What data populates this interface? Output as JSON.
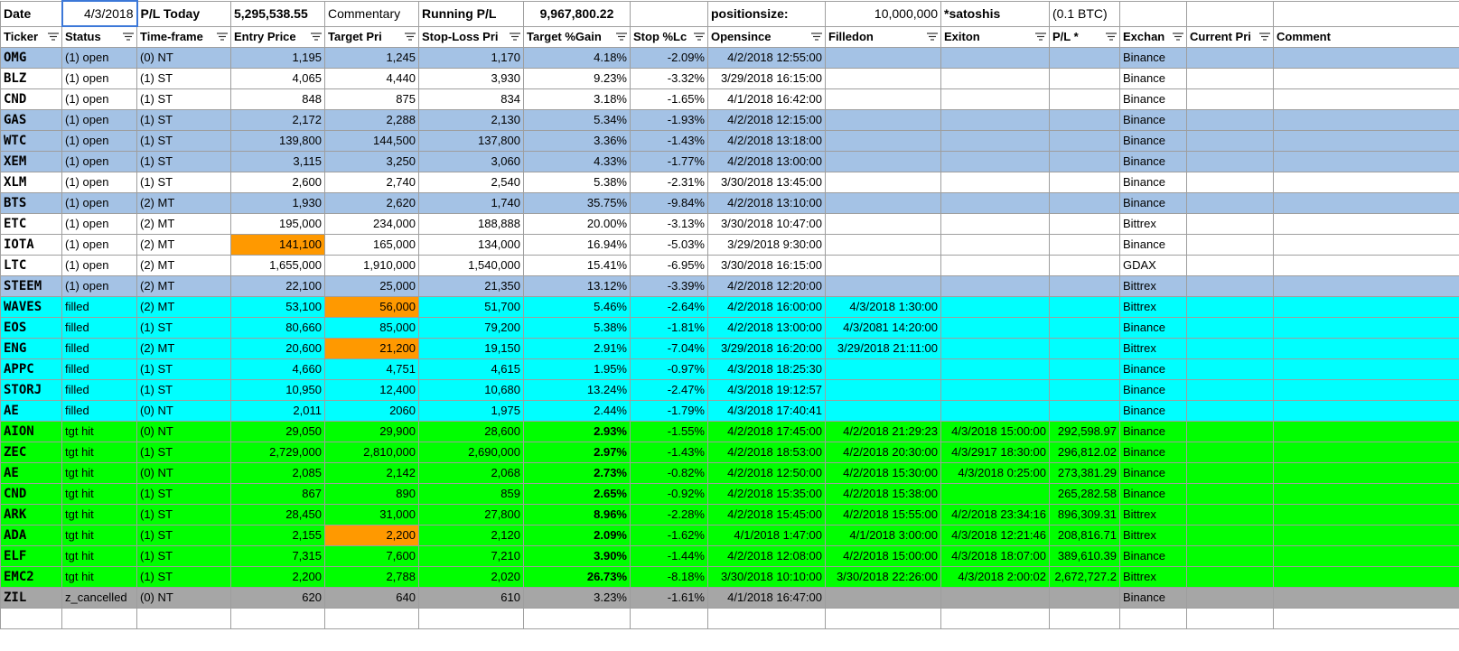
{
  "top": {
    "date_label": "Date",
    "date_value": "4/3/2018",
    "pl_today_label": "P/L Today",
    "pl_today_value": "5,295,538.55",
    "commentary_label": "Commentary",
    "running_pl_label": "Running P/L",
    "running_pl_value": "9,967,800.22",
    "positionsize_label": "positionsize:",
    "positionsize_value": "10,000,000",
    "satoshis_label": "*satoshis",
    "btc_label": "(0.1 BTC)"
  },
  "headers": [
    "Ticker",
    "Status",
    "Time-frame",
    "Entry Price",
    "Target Pri",
    "Stop-Loss Pri",
    "Target %Gain",
    "Stop %Lc",
    "Opensince",
    "Filledon",
    "Exiton",
    "P/L *",
    "Exchan",
    "Current Pri",
    "Comment"
  ],
  "rows": [
    {
      "style": "open-blue",
      "cells": [
        "OMG",
        "(1) open",
        "(0) NT",
        "1,195",
        "1,245",
        "1,170",
        "4.18%",
        "-2.09%",
        "4/2/2018 12:55:00",
        "",
        "",
        "",
        "Binance",
        "",
        ""
      ]
    },
    {
      "style": "open-white",
      "cells": [
        "BLZ",
        "(1) open",
        "(1) ST",
        "4,065",
        "4,440",
        "3,930",
        "9.23%",
        "-3.32%",
        "3/29/2018 16:15:00",
        "",
        "",
        "",
        "Binance",
        "",
        ""
      ]
    },
    {
      "style": "open-white",
      "cells": [
        "CND",
        "(1) open",
        "(1) ST",
        "848",
        "875",
        "834",
        "3.18%",
        "-1.65%",
        "4/1/2018 16:42:00",
        "",
        "",
        "",
        "Binance",
        "",
        ""
      ]
    },
    {
      "style": "open-blue",
      "cells": [
        "GAS",
        "(1) open",
        "(1) ST",
        "2,172",
        "2,288",
        "2,130",
        "5.34%",
        "-1.93%",
        "4/2/2018 12:15:00",
        "",
        "",
        "",
        "Binance",
        "",
        ""
      ]
    },
    {
      "style": "open-blue",
      "cells": [
        "WTC",
        "(1) open",
        "(1) ST",
        "139,800",
        "144,500",
        "137,800",
        "3.36%",
        "-1.43%",
        "4/2/2018 13:18:00",
        "",
        "",
        "",
        "Binance",
        "",
        ""
      ]
    },
    {
      "style": "open-blue",
      "cells": [
        "XEM",
        "(1) open",
        "(1) ST",
        "3,115",
        "3,250",
        "3,060",
        "4.33%",
        "-1.77%",
        "4/2/2018 13:00:00",
        "",
        "",
        "",
        "Binance",
        "",
        ""
      ]
    },
    {
      "style": "open-white",
      "cells": [
        "XLM",
        "(1) open",
        "(1) ST",
        "2,600",
        "2,740",
        "2,540",
        "5.38%",
        "-2.31%",
        "3/30/2018 13:45:00",
        "",
        "",
        "",
        "Binance",
        "",
        ""
      ]
    },
    {
      "style": "open-blue",
      "cells": [
        "BTS",
        "(1) open",
        "(2) MT",
        "1,930",
        "2,620",
        "1,740",
        "35.75%",
        "-9.84%",
        "4/2/2018 13:10:00",
        "",
        "",
        "",
        "Binance",
        "",
        ""
      ]
    },
    {
      "style": "open-white",
      "cells": [
        "ETC",
        "(1) open",
        "(2) MT",
        "195,000",
        "234,000",
        "188,888",
        "20.00%",
        "-3.13%",
        "3/30/2018 10:47:00",
        "",
        "",
        "",
        "Bittrex",
        "",
        ""
      ]
    },
    {
      "style": "open-white",
      "hl": [
        3
      ],
      "cells": [
        "IOTA",
        "(1) open",
        "(2) MT",
        "141,100",
        "165,000",
        "134,000",
        "16.94%",
        "-5.03%",
        "3/29/2018 9:30:00",
        "",
        "",
        "",
        "Binance",
        "",
        ""
      ]
    },
    {
      "style": "open-white",
      "cells": [
        "LTC",
        "(1) open",
        "(2) MT",
        "1,655,000",
        "1,910,000",
        "1,540,000",
        "15.41%",
        "-6.95%",
        "3/30/2018 16:15:00",
        "",
        "",
        "",
        "GDAX",
        "",
        ""
      ]
    },
    {
      "style": "open-blue",
      "cells": [
        "STEEM",
        "(1) open",
        "(2) MT",
        "22,100",
        "25,000",
        "21,350",
        "13.12%",
        "-3.39%",
        "4/2/2018 12:20:00",
        "",
        "",
        "",
        "Bittrex",
        "",
        ""
      ]
    },
    {
      "style": "filled",
      "hl": [
        4
      ],
      "cells": [
        "WAVES",
        "filled",
        "(2) MT",
        "53,100",
        "56,000",
        "51,700",
        "5.46%",
        "-2.64%",
        "4/2/2018 16:00:00",
        "4/3/2018 1:30:00",
        "",
        "",
        "Bittrex",
        "",
        ""
      ]
    },
    {
      "style": "filled",
      "cells": [
        "EOS",
        "filled",
        "(1) ST",
        "80,660",
        "85,000",
        "79,200",
        "5.38%",
        "-1.81%",
        "4/2/2018 13:00:00",
        "4/3/2081 14:20:00",
        "",
        "",
        "Binance",
        "",
        ""
      ]
    },
    {
      "style": "filled",
      "hl": [
        4
      ],
      "cells": [
        "ENG",
        "filled",
        "(2) MT",
        "20,600",
        "21,200",
        "19,150",
        "2.91%",
        "-7.04%",
        "3/29/2018 16:20:00",
        "3/29/2018 21:11:00",
        "",
        "",
        "Bittrex",
        "",
        ""
      ]
    },
    {
      "style": "filled",
      "cells": [
        "APPC",
        "filled",
        "(1) ST",
        "4,660",
        "4,751",
        "4,615",
        "1.95%",
        "-0.97%",
        "4/3/2018 18:25:30",
        "",
        "",
        "",
        "Binance",
        "",
        ""
      ]
    },
    {
      "style": "filled",
      "cells": [
        "STORJ",
        "filled",
        "(1) ST",
        "10,950",
        "12,400",
        "10,680",
        "13.24%",
        "-2.47%",
        "4/3/2018 19:12:57",
        "",
        "",
        "",
        "Binance",
        "",
        ""
      ]
    },
    {
      "style": "filled",
      "cells": [
        "AE",
        "filled",
        "(0) NT",
        "2,011",
        "2060",
        "1,975",
        "2.44%",
        "-1.79%",
        "4/3/2018 17:40:41",
        "",
        "",
        "",
        "Binance",
        "",
        ""
      ]
    },
    {
      "style": "tgt",
      "cells": [
        "AION",
        "tgt hit",
        "(0) NT",
        "29,050",
        "29,900",
        "28,600",
        "2.93%",
        "-1.55%",
        "4/2/2018 17:45:00",
        "4/2/2018 21:29:23",
        "4/3/2018 15:00:00",
        "292,598.97",
        "Binance",
        "",
        ""
      ]
    },
    {
      "style": "tgt",
      "cells": [
        "ZEC",
        "tgt hit",
        "(1) ST",
        "2,729,000",
        "2,810,000",
        "2,690,000",
        "2.97%",
        "-1.43%",
        "4/2/2018 18:53:00",
        "4/2/2018 20:30:00",
        "4/3/2917 18:30:00",
        "296,812.02",
        "Binance",
        "",
        ""
      ]
    },
    {
      "style": "tgt",
      "cells": [
        "AE",
        "tgt hit",
        "(0) NT",
        "2,085",
        "2,142",
        "2,068",
        "2.73%",
        "-0.82%",
        "4/2/2018 12:50:00",
        "4/2/2018 15:30:00",
        "4/3/2018 0:25:00",
        "273,381.29",
        "Binance",
        "",
        ""
      ]
    },
    {
      "style": "tgt",
      "cells": [
        "CND",
        "tgt hit",
        "(1) ST",
        "867",
        "890",
        "859",
        "2.65%",
        "-0.92%",
        "4/2/2018 15:35:00",
        "4/2/2018 15:38:00",
        "",
        "265,282.58",
        "Binance",
        "",
        ""
      ]
    },
    {
      "style": "tgt",
      "cells": [
        "ARK",
        "tgt hit",
        "(1) ST",
        "28,450",
        "31,000",
        "27,800",
        "8.96%",
        "-2.28%",
        "4/2/2018 15:45:00",
        "4/2/2018 15:55:00",
        "4/2/2018 23:34:16",
        "896,309.31",
        "Bittrex",
        "",
        ""
      ]
    },
    {
      "style": "tgt",
      "hl": [
        4
      ],
      "cells": [
        "ADA",
        "tgt hit",
        "(1) ST",
        "2,155",
        "2,200",
        "2,120",
        "2.09%",
        "-1.62%",
        "4/1/2018 1:47:00",
        "4/1/2018 3:00:00",
        "4/3/2018 12:21:46",
        "208,816.71",
        "Bittrex",
        "",
        ""
      ]
    },
    {
      "style": "tgt",
      "cells": [
        "ELF",
        "tgt hit",
        "(1) ST",
        "7,315",
        "7,600",
        "7,210",
        "3.90%",
        "-1.44%",
        "4/2/2018 12:08:00",
        "4/2/2018 15:00:00",
        "4/3/2018 18:07:00",
        "389,610.39",
        "Binance",
        "",
        ""
      ]
    },
    {
      "style": "tgt",
      "cells": [
        "EMC2",
        "tgt hit",
        "(1) ST",
        "2,200",
        "2,788",
        "2,020",
        "26.73%",
        "-8.18%",
        "3/30/2018 10:10:00",
        "3/30/2018 22:26:00",
        "4/3/2018 2:00:02",
        "2,672,727.2",
        "Bittrex",
        "",
        ""
      ]
    },
    {
      "style": "cancel",
      "cells": [
        "ZIL",
        "z_cancelled",
        "(0) NT",
        "620",
        "640",
        "610",
        "3.23%",
        "-1.61%",
        "4/1/2018 16:47:00",
        "",
        "",
        "",
        "Binance",
        "",
        ""
      ]
    }
  ],
  "colors": {
    "open_blue": "#a4c2e5",
    "filled_cyan": "#00ffff",
    "tgt_green": "#00ff00",
    "cancel_gray": "#a6a6a6",
    "highlight_orange": "#ff9900"
  }
}
